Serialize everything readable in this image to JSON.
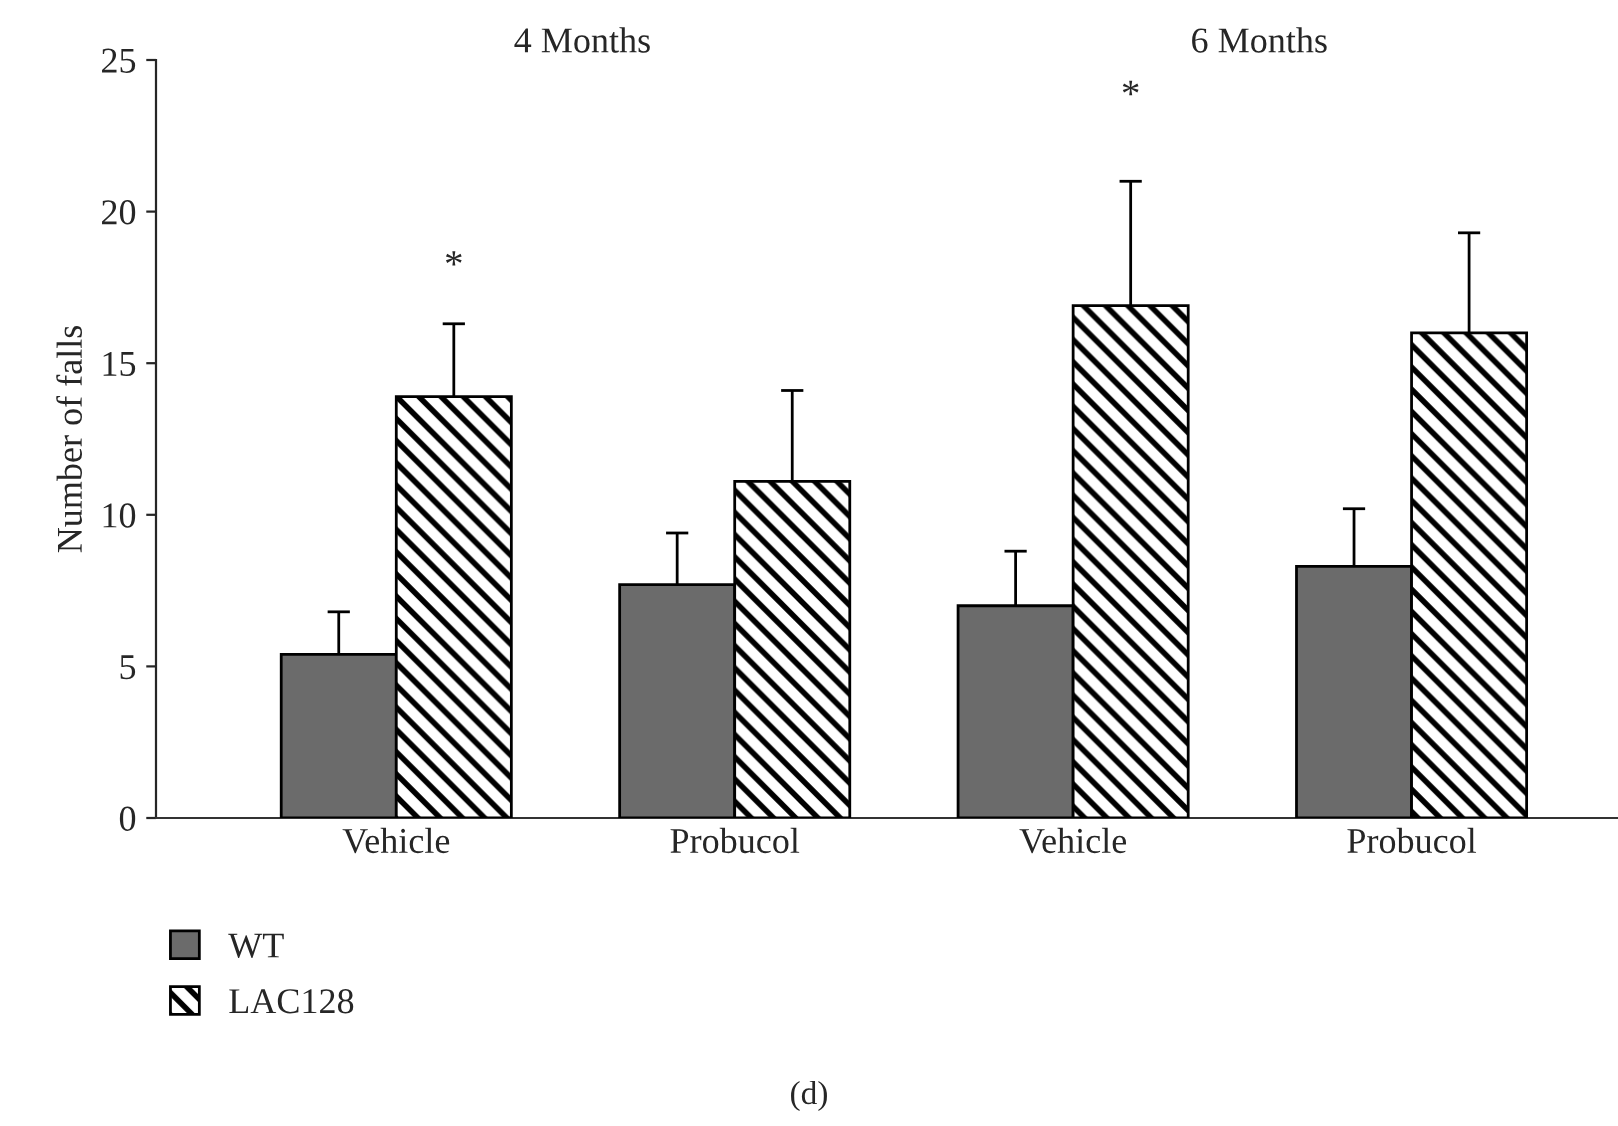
{
  "chart_data": {
    "type": "bar",
    "ylabel": "Number of falls",
    "categories": [
      "Vehicle",
      "Probucol",
      "Vehicle",
      "Probucol"
    ],
    "series": [
      {
        "name": "WT",
        "color": "#6b6b6b",
        "values": [
          5.4,
          7.7,
          7.0,
          8.3
        ],
        "errors": [
          1.4,
          1.7,
          1.8,
          1.9
        ]
      },
      {
        "name": "LAC128",
        "color": "#000000",
        "values": [
          13.9,
          11.1,
          16.9,
          16.0
        ],
        "errors": [
          2.4,
          3.0,
          4.1,
          3.3
        ]
      }
    ],
    "ylim": [
      0,
      25
    ],
    "yticks": [
      0,
      5,
      10,
      15,
      20,
      25
    ],
    "grid": false,
    "legend": "bottom left",
    "annotations": [
      "4 Months",
      "6 Months",
      "*",
      "*",
      "(d)"
    ]
  }
}
